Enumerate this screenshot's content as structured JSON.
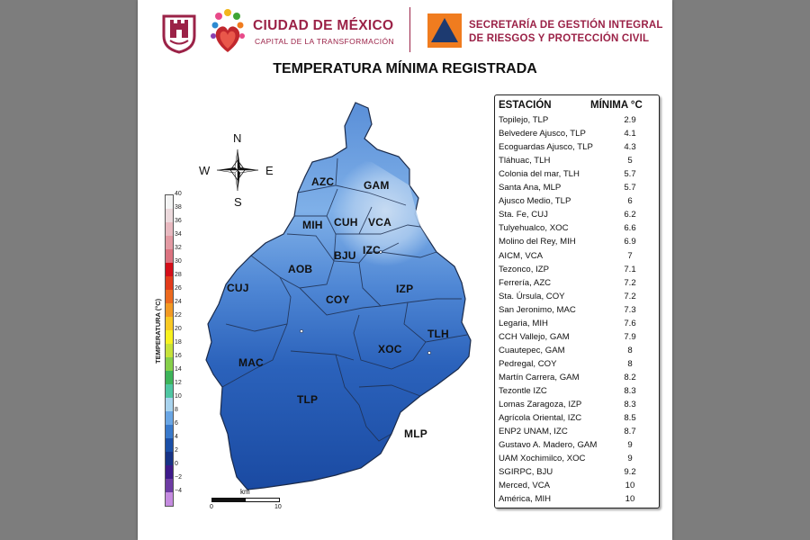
{
  "header": {
    "cdmx_name": "CIUDAD DE MÉXICO",
    "cdmx_subtitle": "CAPITAL DE LA TRANSFORMACIÓN",
    "secretaria_line1": "SECRETARÍA DE GESTIÓN INTEGRAL",
    "secretaria_line2": "DE RIESGOS Y PROTECCIÓN CIVIL"
  },
  "title": "TEMPERATURA MÍNIMA REGISTRADA",
  "compass": {
    "n": "N",
    "s": "S",
    "e": "E",
    "w": "W"
  },
  "legend": {
    "label": "TEMPERATURA (°C)",
    "ticks": [
      "40",
      "38",
      "36",
      "34",
      "32",
      "30",
      "28",
      "26",
      "24",
      "22",
      "20",
      "18",
      "16",
      "14",
      "12",
      "10",
      "8",
      "6",
      "4",
      "2",
      "0",
      "−2",
      "−4"
    ],
    "colors": [
      "#f4f4f4",
      "#ecd9dc",
      "#e8b9c0",
      "#e39aa3",
      "#db7380",
      "#d40f1a",
      "#e23b1b",
      "#ec6a1f",
      "#f29a24",
      "#f8c924",
      "#f8f21f",
      "#c6e23a",
      "#86cf4a",
      "#3db45a",
      "#4fc6a2",
      "#a8d3ee",
      "#6aa6e4",
      "#3979cb",
      "#1b4fa7",
      "#173386",
      "#3e1a8a",
      "#6d3ca3",
      "#c58be0"
    ]
  },
  "scale_bar": {
    "unit": "km",
    "start": "0",
    "end": "10"
  },
  "map": {
    "alcaldias": [
      "AZC",
      "GAM",
      "MIH",
      "CUH",
      "VCA",
      "BJU",
      "IZC",
      "AOB",
      "CUJ",
      "IZP",
      "COY",
      "TLH",
      "XOC",
      "MAC",
      "TLP",
      "MLP"
    ]
  },
  "table": {
    "header_station": "ESTACIÓN",
    "header_min": "MÍNIMA °C",
    "rows": [
      {
        "station": "Topilejo, TLP",
        "min": "2.9"
      },
      {
        "station": "Belvedere Ajusco, TLP",
        "min": "4.1"
      },
      {
        "station": "Ecoguardas Ajusco, TLP",
        "min": "4.3"
      },
      {
        "station": "Tláhuac, TLH",
        "min": "5"
      },
      {
        "station": "Colonia del mar, TLH",
        "min": "5.7"
      },
      {
        "station": "Santa Ana, MLP",
        "min": "5.7"
      },
      {
        "station": "Ajusco Medio, TLP",
        "min": "6"
      },
      {
        "station": "Sta. Fe, CUJ",
        "min": "6.2"
      },
      {
        "station": "Tulyehualco, XOC",
        "min": "6.6"
      },
      {
        "station": "Molino del Rey, MIH",
        "min": "6.9"
      },
      {
        "station": "AICM, VCA",
        "min": "7"
      },
      {
        "station": "Tezonco, IZP",
        "min": "7.1"
      },
      {
        "station": "Ferrería, AZC",
        "min": "7.2"
      },
      {
        "station": "Sta. Úrsula, COY",
        "min": "7.2"
      },
      {
        "station": "San Jeronimo, MAC",
        "min": "7.3"
      },
      {
        "station": "Legaria, MIH",
        "min": "7.6"
      },
      {
        "station": "CCH Vallejo, GAM",
        "min": "7.9"
      },
      {
        "station": "Cuautepec, GAM",
        "min": "8"
      },
      {
        "station": "Pedregal, COY",
        "min": "8"
      },
      {
        "station": "Martín Carrera, GAM",
        "min": "8.2"
      },
      {
        "station": "Tezontle IZC",
        "min": "8.3"
      },
      {
        "station": "Lomas Zaragoza, IZP",
        "min": "8.3"
      },
      {
        "station": "Agrícola Oriental, IZC",
        "min": "8.5"
      },
      {
        "station": "ENP2 UNAM,  IZC",
        "min": "8.7"
      },
      {
        "station": "Gustavo A. Madero, GAM",
        "min": "9"
      },
      {
        "station": "UAM Xochimilco, XOC",
        "min": "9"
      },
      {
        "station": "SGIRPC, BJU",
        "min": "9.2"
      },
      {
        "station": "Merced, VCA",
        "min": "10"
      },
      {
        "station": "América, MIH",
        "min": "10"
      }
    ]
  }
}
